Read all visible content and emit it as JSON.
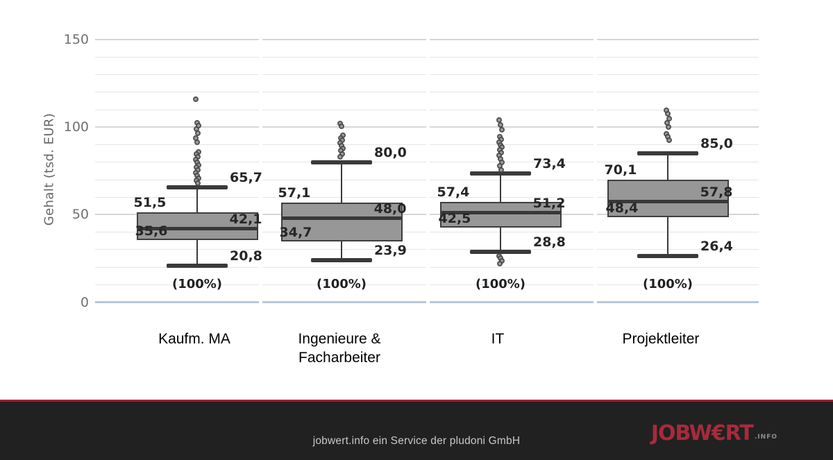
{
  "chart_data": {
    "type": "boxplot",
    "ylabel": "Gehalt (tsd. EUR)",
    "ylim": [
      0,
      150
    ],
    "yticks": [
      150,
      100,
      50,
      0
    ],
    "grid": "on",
    "categories": [
      "Kaufm. MA",
      "Ingenieure & Facharbeiter",
      "IT",
      "Projektleiter"
    ],
    "series": [
      {
        "label_lines": [
          "Kaufm. MA"
        ],
        "percent": "(100%)",
        "whisker_low": 20.8,
        "q1": 35.6,
        "median": 42.1,
        "q3": 51.5,
        "whisker_high": 65.7,
        "labels": {
          "whisker_low": "20,8",
          "q1": "35,6",
          "median": "42,1",
          "q3": "51,5",
          "whisker_high": "65,7"
        },
        "outliers": [
          116,
          102.5,
          101,
          99,
          96.5,
          94,
          91.5,
          86,
          84.5,
          83,
          81.5,
          80,
          78.5,
          77,
          75.5,
          74,
          72.5,
          71,
          69.5,
          68
        ]
      },
      {
        "label_lines": [
          "Ingenieure &",
          "Facharbeiter"
        ],
        "percent": "(100%)",
        "whisker_low": 23.9,
        "q1": 34.7,
        "median": 48.0,
        "q3": 57.1,
        "whisker_high": 80.0,
        "labels": {
          "whisker_low": "23,9",
          "q1": "34,7",
          "median": "48,0",
          "q3": "57,1",
          "whisker_high": "80,0"
        },
        "outliers": [
          102,
          100.5,
          95.5,
          94,
          92.5,
          91,
          89.5,
          88,
          86.5,
          84.5,
          83
        ]
      },
      {
        "label_lines": [
          "IT"
        ],
        "percent": "(100%)",
        "whisker_low": 28.8,
        "q1": 42.5,
        "median": 51.2,
        "q3": 57.4,
        "whisker_high": 73.4,
        "labels": {
          "whisker_low": "28,8",
          "q1": "42,5",
          "median": "51,2",
          "q3": "57,4",
          "whisker_high": "73,4"
        },
        "outliers": [
          104,
          101.5,
          98.5,
          94.5,
          93,
          91.5,
          90,
          88.5,
          87,
          85.5,
          84,
          82,
          80,
          78,
          75.5,
          26.5,
          25,
          23.5,
          22
        ]
      },
      {
        "label_lines": [
          "Projektleiter"
        ],
        "percent": "(100%)",
        "whisker_low": 26.4,
        "q1": 48.4,
        "median": 57.8,
        "q3": 70.1,
        "whisker_high": 85.0,
        "labels": {
          "whisker_low": "26,4",
          "q1": "48,4",
          "median": "57,8",
          "q3": "70,1",
          "whisker_high": "85,0"
        },
        "outliers": [
          109.5,
          107.5,
          105,
          102.5,
          100,
          96,
          94.5,
          92.5
        ]
      }
    ]
  },
  "footer": {
    "caption": "jobwert.info ein Service der pludoni GmbH",
    "logo_word": "JOBW€RT",
    "logo_suffix": ".INFO"
  },
  "colors": {
    "box_fill": "#979797",
    "box_border": "#3e3e3e",
    "median": "#383838",
    "whisker": "#3a3a3a",
    "grid_minor": "#e5e5e5",
    "grid_major": "#d6d6d6",
    "baseline": "#b8c8d9",
    "outlier_fill": "#9a9a9a",
    "outlier_border": "#4a4a4a",
    "value_label": "#262626",
    "percent_label": "#1f1f1f",
    "tick_label": "#707070",
    "axis_title": "#666666",
    "category_label": "#000000",
    "footer_bg": "#212121",
    "footer_text": "#c9c9c9",
    "accent_red": "#9e2134",
    "logo_red": "#a62b3b",
    "logo_suffix_color": "#8e8e8e"
  }
}
